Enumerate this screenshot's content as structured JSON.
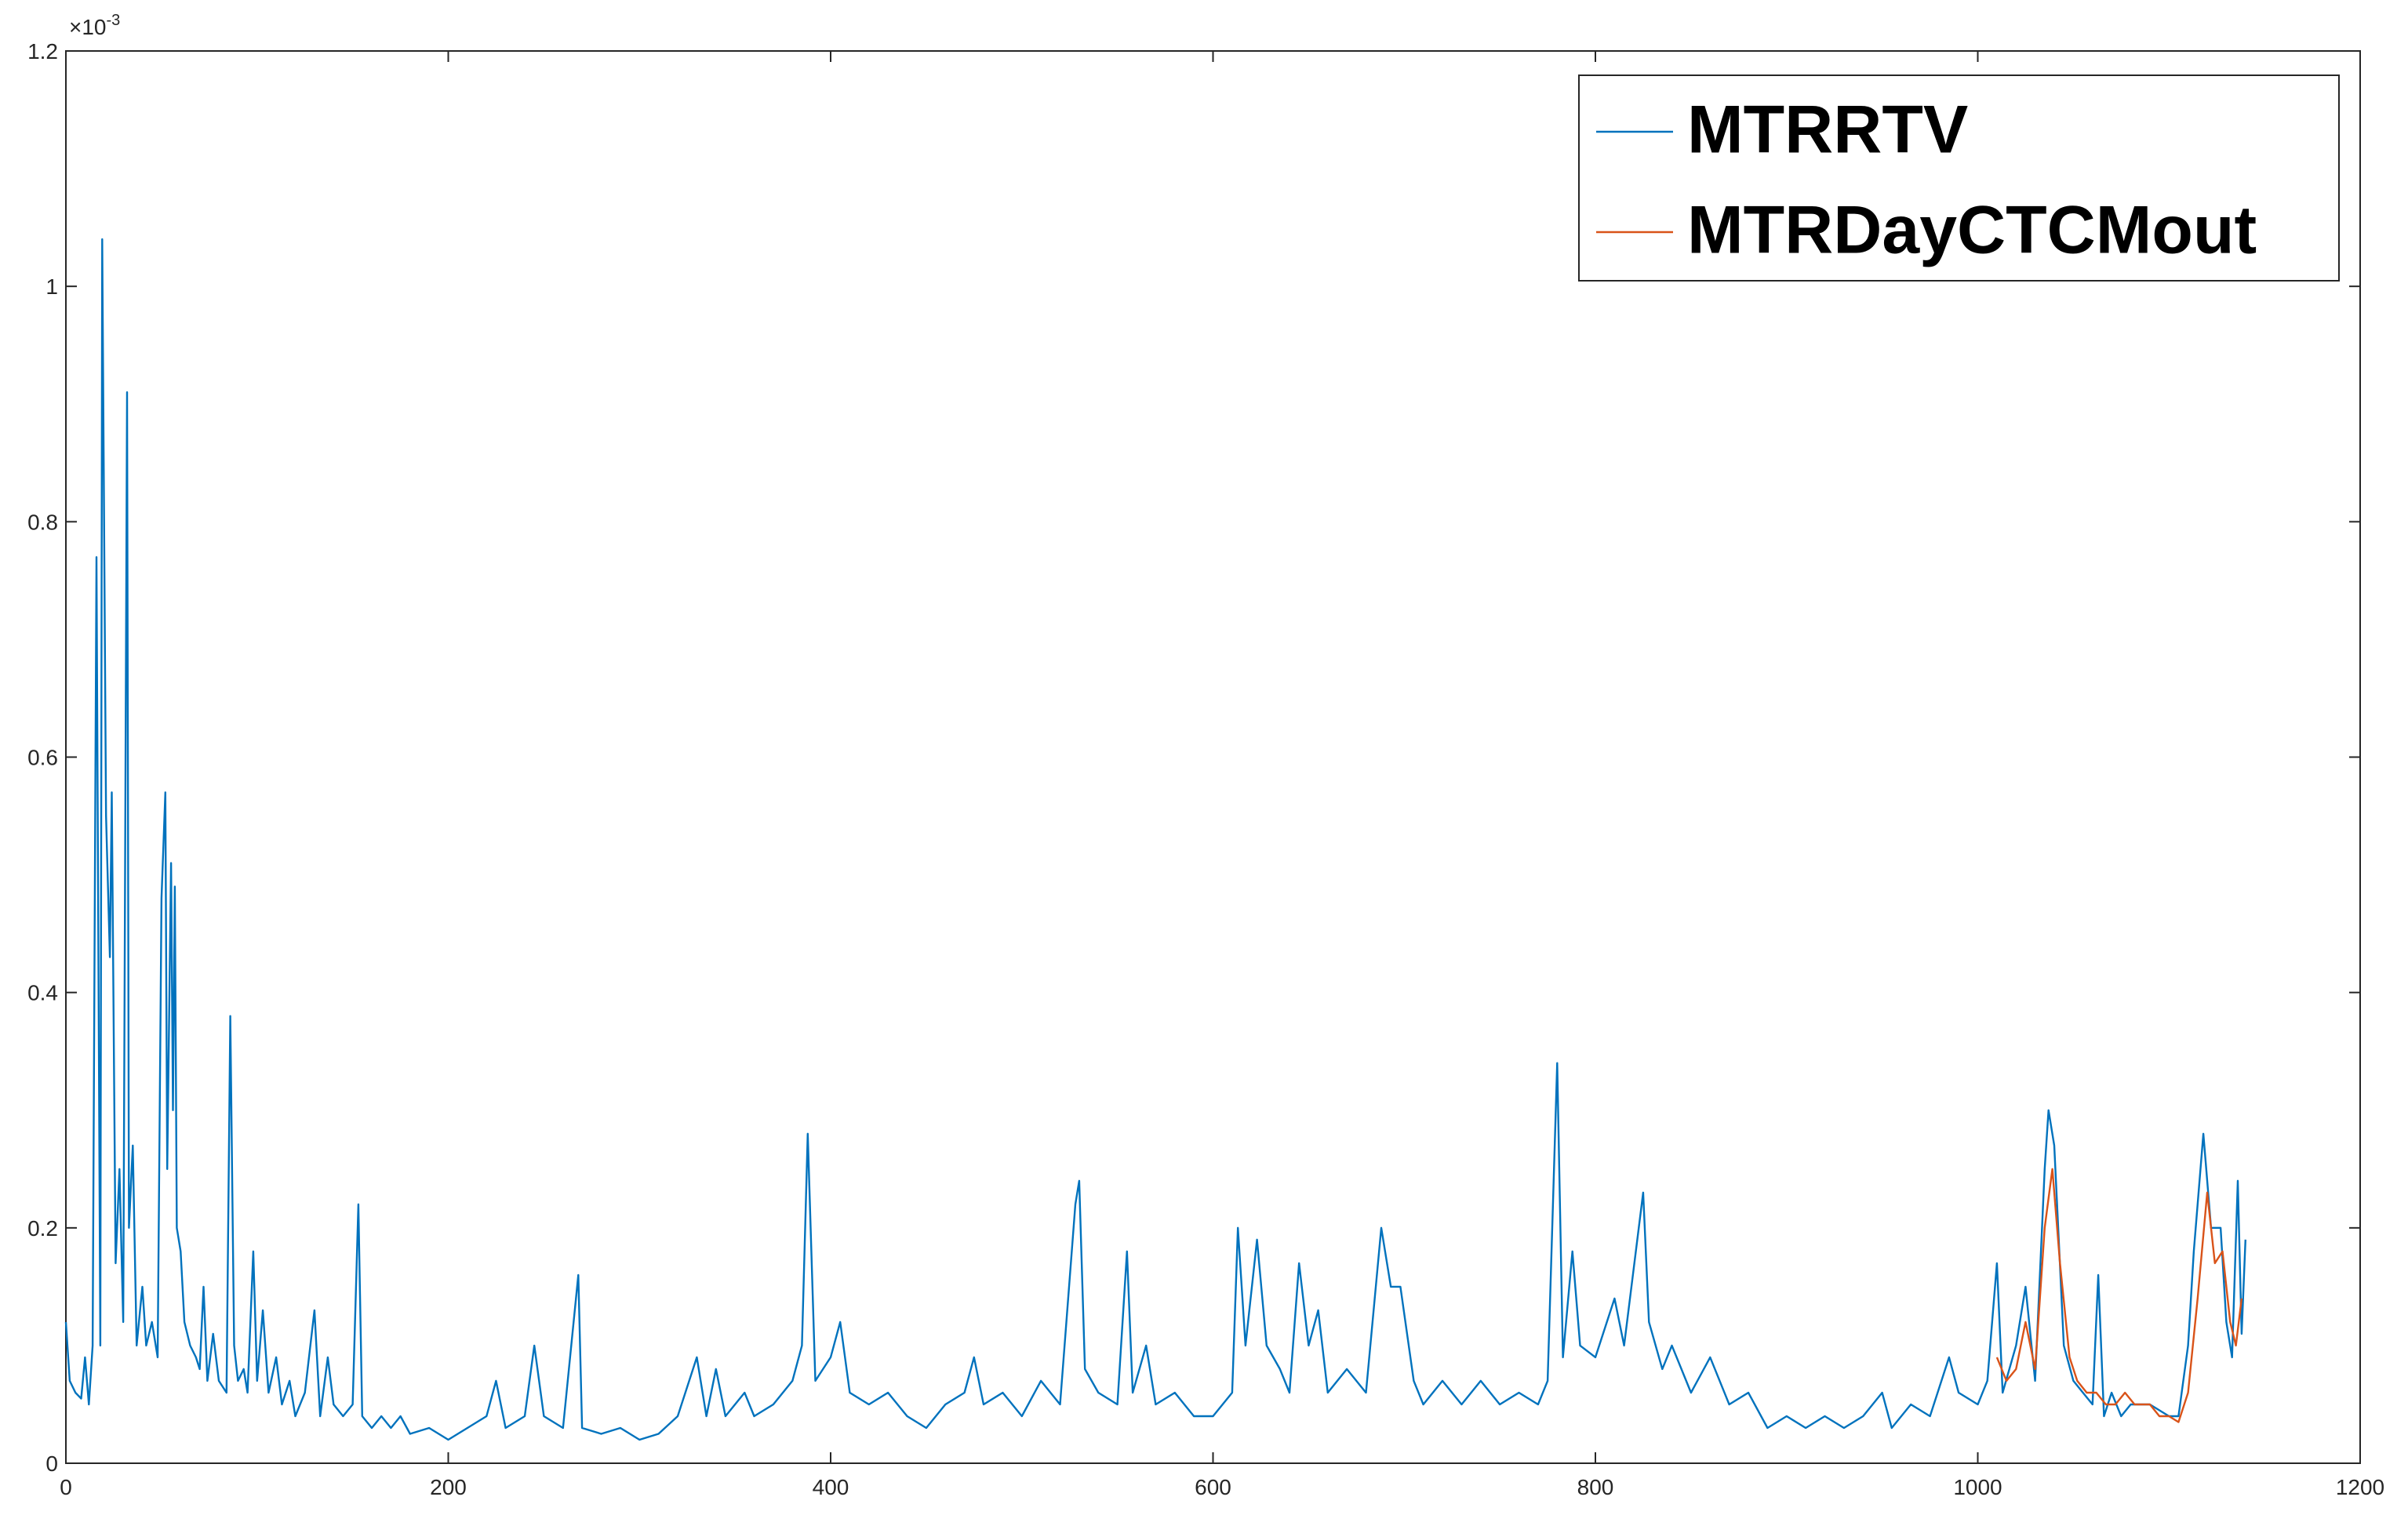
{
  "chart_data": {
    "type": "line",
    "y_multiplier": {
      "base": "×10",
      "exponent": "-3"
    },
    "xlim": [
      0,
      1200
    ],
    "xticks": [
      0,
      200,
      400,
      600,
      800,
      1000,
      1200
    ],
    "ylim": [
      0,
      1.2
    ],
    "yticks": [
      0,
      0.2,
      0.4,
      0.6,
      0.8,
      1,
      1.2
    ],
    "legend": "upper right",
    "series": [
      {
        "name": "MTRRTV",
        "color": "#0072BD",
        "x": [
          0,
          2,
          5,
          8,
          10,
          12,
          14,
          16,
          18,
          19,
          21,
          23,
          24,
          26,
          28,
          30,
          32,
          33,
          35,
          37,
          40,
          42,
          45,
          48,
          50,
          52,
          53,
          55,
          56,
          57,
          58,
          60,
          62,
          65,
          68,
          70,
          72,
          74,
          77,
          80,
          84,
          86,
          88,
          90,
          93,
          95,
          98,
          100,
          103,
          106,
          110,
          113,
          117,
          120,
          125,
          130,
          133,
          137,
          140,
          145,
          150,
          153,
          155,
          160,
          165,
          170,
          175,
          180,
          190,
          200,
          210,
          220,
          225,
          230,
          240,
          245,
          250,
          260,
          268,
          270,
          280,
          290,
          300,
          310,
          320,
          330,
          335,
          340,
          345,
          355,
          360,
          370,
          380,
          385,
          388,
          392,
          400,
          405,
          410,
          420,
          430,
          440,
          450,
          460,
          470,
          475,
          480,
          490,
          500,
          510,
          520,
          528,
          530,
          533,
          540,
          550,
          555,
          558,
          565,
          570,
          580,
          590,
          600,
          610,
          613,
          617,
          623,
          628,
          635,
          640,
          645,
          650,
          655,
          660,
          670,
          680,
          688,
          693,
          698,
          705,
          710,
          720,
          730,
          740,
          750,
          760,
          770,
          775,
          780,
          783,
          788,
          792,
          800,
          810,
          815,
          825,
          828,
          835,
          840,
          850,
          860,
          870,
          880,
          890,
          900,
          910,
          920,
          930,
          940,
          950,
          955,
          965,
          975,
          985,
          990,
          1000,
          1005,
          1010,
          1013,
          1020,
          1025,
          1030,
          1035,
          1037,
          1040,
          1045,
          1050,
          1055,
          1060,
          1063,
          1066,
          1070,
          1075,
          1080,
          1090,
          1100,
          1105,
          1110,
          1113,
          1118,
          1122,
          1127,
          1130,
          1133,
          1136,
          1138,
          1140
        ],
        "values": [
          0.12,
          0.07,
          0.06,
          0.055,
          0.09,
          0.05,
          0.1,
          0.77,
          0.1,
          1.04,
          0.55,
          0.43,
          0.57,
          0.17,
          0.25,
          0.12,
          0.91,
          0.2,
          0.27,
          0.1,
          0.15,
          0.1,
          0.12,
          0.09,
          0.48,
          0.57,
          0.25,
          0.51,
          0.3,
          0.49,
          0.2,
          0.18,
          0.12,
          0.1,
          0.09,
          0.08,
          0.15,
          0.07,
          0.11,
          0.07,
          0.06,
          0.38,
          0.1,
          0.07,
          0.08,
          0.06,
          0.18,
          0.07,
          0.13,
          0.06,
          0.09,
          0.05,
          0.07,
          0.04,
          0.06,
          0.13,
          0.04,
          0.09,
          0.05,
          0.04,
          0.05,
          0.22,
          0.04,
          0.03,
          0.04,
          0.03,
          0.04,
          0.025,
          0.03,
          0.02,
          0.03,
          0.04,
          0.07,
          0.03,
          0.04,
          0.1,
          0.04,
          0.03,
          0.16,
          0.03,
          0.025,
          0.03,
          0.02,
          0.025,
          0.04,
          0.09,
          0.04,
          0.08,
          0.04,
          0.06,
          0.04,
          0.05,
          0.07,
          0.1,
          0.28,
          0.07,
          0.09,
          0.12,
          0.06,
          0.05,
          0.06,
          0.04,
          0.03,
          0.05,
          0.06,
          0.09,
          0.05,
          0.06,
          0.04,
          0.07,
          0.05,
          0.22,
          0.24,
          0.08,
          0.06,
          0.05,
          0.18,
          0.06,
          0.1,
          0.05,
          0.06,
          0.04,
          0.04,
          0.06,
          0.2,
          0.1,
          0.19,
          0.1,
          0.08,
          0.06,
          0.17,
          0.1,
          0.13,
          0.06,
          0.08,
          0.06,
          0.2,
          0.15,
          0.15,
          0.07,
          0.05,
          0.07,
          0.05,
          0.07,
          0.05,
          0.06,
          0.05,
          0.07,
          0.34,
          0.09,
          0.18,
          0.1,
          0.09,
          0.14,
          0.1,
          0.23,
          0.12,
          0.08,
          0.1,
          0.06,
          0.09,
          0.05,
          0.06,
          0.03,
          0.04,
          0.03,
          0.04,
          0.03,
          0.04,
          0.06,
          0.03,
          0.05,
          0.04,
          0.09,
          0.06,
          0.05,
          0.07,
          0.17,
          0.06,
          0.1,
          0.15,
          0.07,
          0.25,
          0.3,
          0.27,
          0.1,
          0.07,
          0.06,
          0.05,
          0.16,
          0.04,
          0.06,
          0.04,
          0.05,
          0.05,
          0.04,
          0.04,
          0.1,
          0.18,
          0.28,
          0.2,
          0.2,
          0.12,
          0.09,
          0.24,
          0.11,
          0.19
        ]
      },
      {
        "name": "MTRDayCTCMout",
        "color": "#D95319",
        "x": [
          1010,
          1015,
          1020,
          1025,
          1030,
          1035,
          1039,
          1043,
          1048,
          1052,
          1057,
          1062,
          1067,
          1072,
          1077,
          1082,
          1090,
          1095,
          1100,
          1105,
          1110,
          1115,
          1120,
          1124,
          1128,
          1132,
          1135,
          1138
        ],
        "values": [
          0.09,
          0.07,
          0.08,
          0.12,
          0.08,
          0.2,
          0.25,
          0.17,
          0.09,
          0.07,
          0.06,
          0.06,
          0.05,
          0.05,
          0.06,
          0.05,
          0.05,
          0.04,
          0.04,
          0.035,
          0.06,
          0.14,
          0.23,
          0.17,
          0.18,
          0.12,
          0.1,
          0.14
        ]
      }
    ]
  }
}
